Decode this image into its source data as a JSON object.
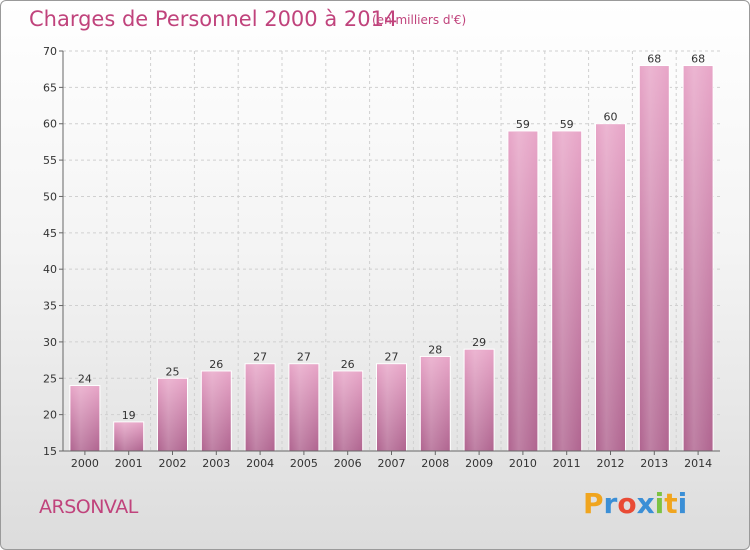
{
  "chart_data": {
    "type": "bar",
    "title": "Charges de Personnel 2000 à 2014",
    "subtitle": "(en milliers d'€)",
    "categories": [
      "2000",
      "2001",
      "2002",
      "2003",
      "2004",
      "2005",
      "2006",
      "2007",
      "2008",
      "2009",
      "2010",
      "2011",
      "2012",
      "2013",
      "2014"
    ],
    "values": [
      24,
      19,
      25,
      26,
      27,
      27,
      26,
      27,
      28,
      29,
      59,
      59,
      60,
      68,
      68
    ],
    "ylim": [
      15,
      70
    ],
    "yticks": [
      15,
      20,
      25,
      30,
      35,
      40,
      45,
      50,
      55,
      60,
      65,
      70
    ],
    "bar_color": "#c0679a",
    "grid": true
  },
  "footer": {
    "commune": "ARSONVAL",
    "brand_letters": [
      "P",
      "r",
      "o",
      "x",
      "i",
      "t",
      "i"
    ],
    "brand_colors": [
      "#f0a51f",
      "#3b8fd6",
      "#e94b35",
      "#3b8fd6",
      "#7cc242",
      "#f0a51f",
      "#3b8fd6"
    ]
  }
}
